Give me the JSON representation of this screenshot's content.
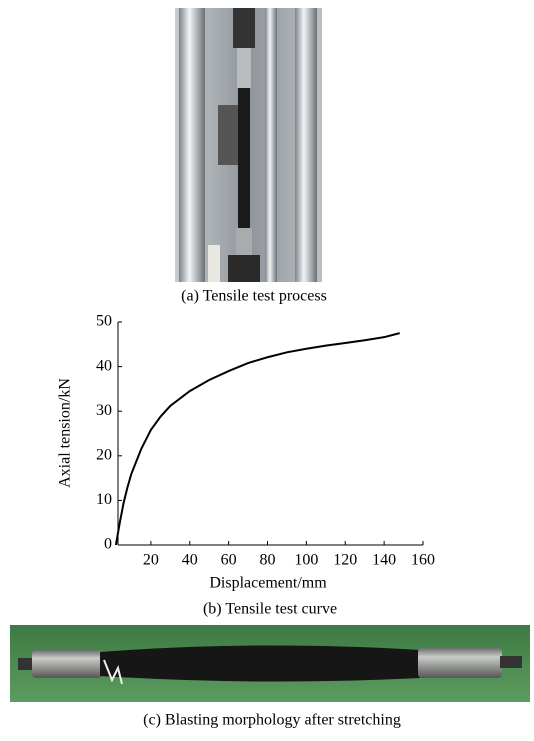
{
  "captions": [
    "(a) Tensile test process",
    "(b) Tensile test curve",
    "(c) Blasting morphology after stretching"
  ],
  "chart_data": {
    "type": "line",
    "x_label": "Displacement/mm",
    "y_label": "Axial tension/kN",
    "x": [
      2,
      4,
      6,
      8,
      10,
      15,
      20,
      25,
      30,
      40,
      50,
      60,
      70,
      80,
      90,
      100,
      110,
      120,
      130,
      140,
      148
    ],
    "values": [
      0,
      5,
      9.5,
      13,
      16,
      21.5,
      25.8,
      28.8,
      31.2,
      34.5,
      37,
      39,
      40.8,
      42.1,
      43.2,
      44,
      44.7,
      45.3,
      45.9,
      46.6,
      47.5
    ],
    "color": "#000000",
    "xlim": [
      0,
      160
    ],
    "xticks": [
      20,
      40,
      60,
      80,
      100,
      120,
      140,
      160
    ],
    "ylim": [
      0,
      50
    ],
    "yticks": [
      0,
      10,
      20,
      30,
      40,
      50
    ],
    "grid": false
  }
}
